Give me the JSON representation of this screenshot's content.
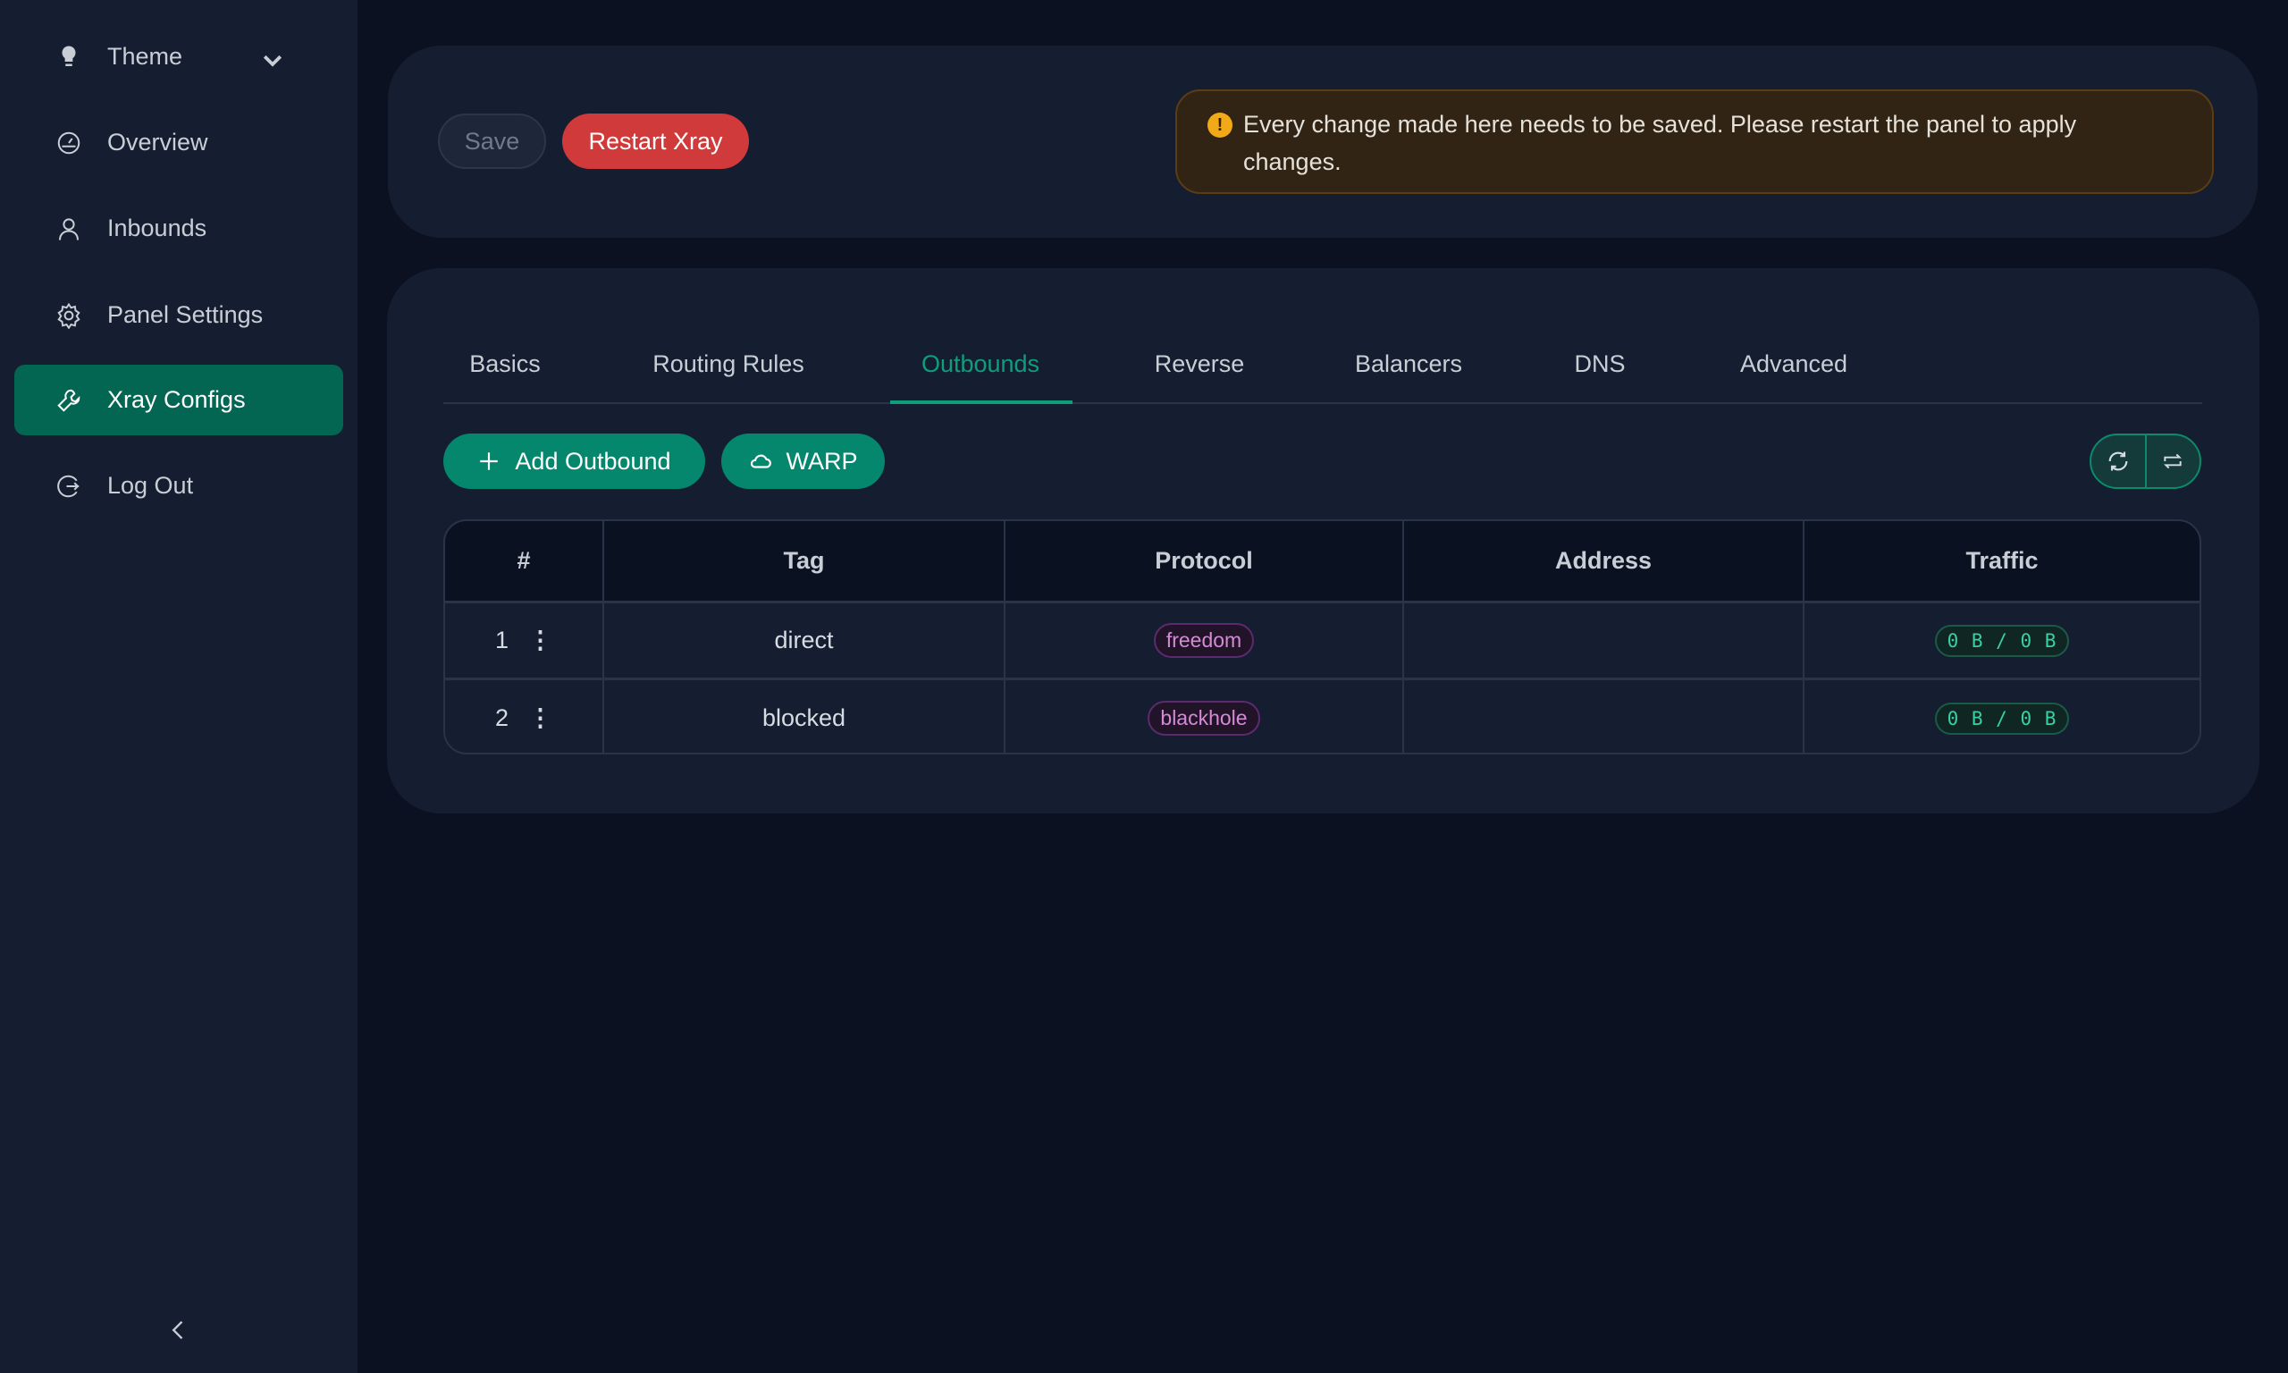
{
  "sidebar": {
    "items": [
      {
        "label": "Theme",
        "icon": "bulb-icon"
      },
      {
        "label": "Overview",
        "icon": "dashboard-icon"
      },
      {
        "label": "Inbounds",
        "icon": "user-icon"
      },
      {
        "label": "Panel Settings",
        "icon": "gear-icon"
      },
      {
        "label": "Xray Configs",
        "icon": "tool-icon",
        "active": true
      },
      {
        "label": "Log Out",
        "icon": "logout-icon"
      }
    ]
  },
  "toolbar": {
    "save_label": "Save",
    "restart_label": "Restart Xray"
  },
  "alert": {
    "text": "Every change made here needs to be saved. Please restart the panel to apply changes.",
    "icon": "exclamation-icon"
  },
  "tabs": [
    "Basics",
    "Routing Rules",
    "Outbounds",
    "Reverse",
    "Balancers",
    "DNS",
    "Advanced"
  ],
  "active_tab": "Outbounds",
  "actions": {
    "add_outbound": "Add Outbound",
    "warp": "WARP"
  },
  "table": {
    "headers": [
      "#",
      "Tag",
      "Protocol",
      "Address",
      "Traffic"
    ],
    "rows": [
      {
        "index": "1",
        "tag": "direct",
        "protocol": "freedom",
        "address": "",
        "traffic": "0 B / 0 B"
      },
      {
        "index": "2",
        "tag": "blocked",
        "protocol": "blackhole",
        "address": "",
        "traffic": "0 B / 0 B"
      }
    ]
  },
  "colors": {
    "accent": "#05876d",
    "danger": "#d13a3a",
    "warning": "#f2a917",
    "protocol": "#d58ad6",
    "traffic": "#3ad0a2"
  }
}
